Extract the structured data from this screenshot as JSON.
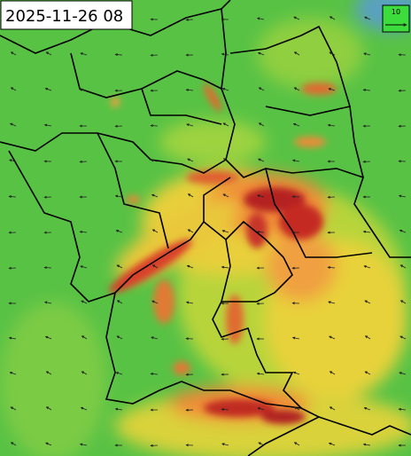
{
  "timestamp": "2025-11-26 08",
  "legend": {
    "label": "10"
  }
}
